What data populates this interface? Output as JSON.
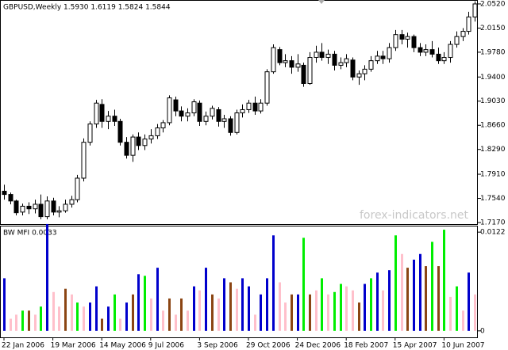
{
  "chart_data": [
    {
      "type": "candlestick",
      "header": "GBPUSD,Weekly  1.5930 1.6119 1.5824 1.5844",
      "watermark": "forex-indicators.net",
      "categories": [
        "22 Jan 2006",
        null,
        null,
        null,
        null,
        null,
        null,
        null,
        "19 Mar 2006",
        null,
        null,
        null,
        null,
        null,
        null,
        null,
        "14 May 2006",
        null,
        null,
        null,
        null,
        null,
        null,
        null,
        "9 Jul 2006",
        null,
        null,
        null,
        null,
        null,
        null,
        null,
        "3 Sep 2006",
        null,
        null,
        null,
        null,
        null,
        null,
        null,
        "29 Oct 2006",
        null,
        null,
        null,
        null,
        null,
        null,
        null,
        "24 Dec 2006",
        null,
        null,
        null,
        null,
        null,
        null,
        null,
        "18 Feb 2007",
        null,
        null,
        null,
        null,
        null,
        null,
        null,
        "15 Apr 2007",
        null,
        null,
        null,
        null,
        null,
        null,
        null,
        "10 Jun 2007",
        null,
        null,
        null,
        null,
        null
      ],
      "open": [
        1.765,
        1.76,
        1.75,
        1.733,
        1.742,
        1.738,
        1.745,
        1.726,
        1.75,
        1.733,
        1.735,
        1.745,
        1.752,
        1.785,
        1.84,
        1.868,
        1.898,
        1.872,
        1.88,
        1.872,
        1.84,
        1.82,
        1.848,
        1.835,
        1.845,
        1.85,
        1.862,
        1.87,
        1.905,
        1.888,
        1.88,
        1.885,
        1.9,
        1.872,
        1.88,
        1.89,
        1.872,
        1.876,
        1.855,
        1.885,
        1.89,
        1.9,
        1.888,
        1.9,
        1.948,
        1.982,
        1.962,
        1.965,
        1.955,
        1.958,
        1.93,
        1.97,
        1.978,
        1.97,
        1.975,
        1.958,
        1.962,
        1.966,
        1.94,
        1.945,
        1.952,
        1.965,
        1.972,
        1.968,
        1.985,
        2.005,
        1.998,
        2.002,
        1.985,
        1.978,
        1.982,
        1.975,
        1.965,
        1.97,
        1.99,
        2.002,
        2.01,
        2.032
      ],
      "high": [
        1.775,
        1.763,
        1.752,
        1.746,
        1.748,
        1.752,
        1.76,
        1.757,
        1.755,
        1.742,
        1.752,
        1.758,
        1.79,
        1.846,
        1.872,
        1.905,
        1.906,
        1.888,
        1.89,
        1.876,
        1.848,
        1.852,
        1.855,
        1.852,
        1.86,
        1.868,
        1.874,
        1.912,
        1.91,
        1.895,
        1.892,
        1.906,
        1.904,
        1.887,
        1.896,
        1.894,
        1.882,
        1.88,
        1.89,
        1.898,
        1.905,
        1.91,
        1.906,
        1.952,
        1.99,
        1.986,
        1.975,
        1.972,
        1.975,
        1.962,
        1.978,
        1.988,
        1.992,
        1.982,
        1.98,
        1.97,
        1.975,
        1.97,
        1.95,
        1.958,
        1.972,
        1.98,
        1.98,
        1.992,
        2.012,
        2.012,
        2.008,
        2.005,
        1.992,
        1.99,
        1.995,
        1.985,
        1.978,
        1.995,
        2.01,
        2.015,
        2.04,
        2.056
      ],
      "low": [
        1.752,
        1.745,
        1.728,
        1.728,
        1.73,
        1.731,
        1.722,
        1.722,
        1.728,
        1.725,
        1.732,
        1.74,
        1.748,
        1.78,
        1.835,
        1.862,
        1.862,
        1.86,
        1.865,
        1.835,
        1.815,
        1.81,
        1.828,
        1.828,
        1.838,
        1.845,
        1.855,
        1.866,
        1.88,
        1.872,
        1.872,
        1.88,
        1.865,
        1.866,
        1.875,
        1.864,
        1.862,
        1.85,
        1.852,
        1.878,
        1.885,
        1.882,
        1.884,
        1.896,
        1.945,
        1.958,
        1.955,
        1.945,
        1.948,
        1.925,
        1.928,
        1.962,
        1.965,
        1.96,
        1.95,
        1.952,
        1.955,
        1.935,
        1.928,
        1.935,
        1.948,
        1.96,
        1.96,
        1.962,
        1.98,
        1.99,
        1.985,
        1.978,
        1.972,
        1.972,
        1.97,
        1.96,
        1.96,
        1.962,
        1.985,
        1.995,
        2.005,
        2.025
      ],
      "close": [
        1.76,
        1.75,
        1.732,
        1.742,
        1.738,
        1.745,
        1.726,
        1.75,
        1.733,
        1.735,
        1.745,
        1.752,
        1.785,
        1.84,
        1.868,
        1.9,
        1.872,
        1.88,
        1.872,
        1.84,
        1.82,
        1.848,
        1.835,
        1.845,
        1.85,
        1.862,
        1.87,
        1.908,
        1.888,
        1.88,
        1.885,
        1.902,
        1.872,
        1.88,
        1.892,
        1.872,
        1.876,
        1.855,
        1.885,
        1.89,
        1.9,
        1.888,
        1.9,
        1.948,
        1.985,
        1.962,
        1.965,
        1.955,
        1.96,
        1.93,
        1.97,
        1.978,
        1.97,
        1.975,
        1.958,
        1.962,
        1.968,
        1.94,
        1.945,
        1.952,
        1.965,
        1.972,
        1.968,
        1.985,
        2.005,
        1.998,
        2.002,
        1.985,
        1.978,
        1.982,
        1.975,
        1.965,
        1.97,
        1.99,
        2.002,
        2.01,
        2.032,
        2.052
      ],
      "up_color": "#ffffff",
      "down_color": "#000000",
      "outline_color": "#000000",
      "ylim": [
        1.7146,
        2.0568
      ],
      "yticks": [
        {
          "value": 2.052,
          "label": "2.0520"
        },
        {
          "value": 2.015,
          "label": "2.0150"
        },
        {
          "value": 1.978,
          "label": "1.9780"
        },
        {
          "value": 1.94,
          "label": "1.9400"
        },
        {
          "value": 1.903,
          "label": "1.9030"
        },
        {
          "value": 1.866,
          "label": "1.8660"
        },
        {
          "value": 1.829,
          "label": "1.8290"
        },
        {
          "value": 1.791,
          "label": "1.7910"
        },
        {
          "value": 1.754,
          "label": "1.7540"
        },
        {
          "value": 1.717,
          "label": "1.7170"
        }
      ],
      "grid": false
    },
    {
      "type": "bar",
      "title": "BW MFI 0.0033",
      "values": [
        0.0065,
        0.0015,
        0.002,
        0.0025,
        0.0025,
        0.002,
        0.003,
        0.0132,
        0.0048,
        0.003,
        0.0052,
        0.0045,
        0.0035,
        0.003,
        0.0035,
        0.0055,
        0.0015,
        0.003,
        0.0045,
        0.0015,
        0.0035,
        0.0045,
        0.007,
        0.0068,
        0.004,
        0.0078,
        0.0025,
        0.004,
        0.002,
        0.004,
        0.0025,
        0.0055,
        0.005,
        0.0078,
        0.0045,
        0.004,
        0.0065,
        0.006,
        0.0052,
        0.0065,
        0.0055,
        0.002,
        0.0045,
        0.0065,
        0.0118,
        0.006,
        0.0035,
        0.0045,
        0.0045,
        0.0115,
        0.0045,
        0.005,
        0.0065,
        0.0045,
        0.0048,
        0.0058,
        0.0055,
        0.005,
        0.0035,
        0.0058,
        0.0065,
        0.0072,
        0.005,
        0.0075,
        0.0118,
        0.0095,
        0.0078,
        0.0088,
        0.0095,
        0.008,
        0.011,
        0.008,
        0.0125,
        0.0042,
        0.0055,
        0.0025,
        0.0072,
        0.0045
      ],
      "colors": [
        "#0000cc",
        "#ffc0cb",
        "#ffc0cb",
        "#00ee00",
        "#8b4513",
        "#ffc0cb",
        "#00ee00",
        "#0000cc",
        "#ffc0cb",
        "#ffc0cb",
        "#8b4513",
        "#ffc0cb",
        "#00ee00",
        "#ffc0cb",
        "#0000cc",
        "#0000cc",
        "#8b4513",
        "#0000cc",
        "#00ee00",
        "#ffc0cb",
        "#0000cc",
        "#8b4513",
        "#0000cc",
        "#00ee00",
        "#ffc0cb",
        "#0000cc",
        "#ffc0cb",
        "#8b4513",
        "#ffc0cb",
        "#8b4513",
        "#ffc0cb",
        "#0000cc",
        "#ffc0cb",
        "#0000cc",
        "#8b4513",
        "#ffc0cb",
        "#0000cc",
        "#8b4513",
        "#ffc0cb",
        "#0000cc",
        "#0000cc",
        "#ffc0cb",
        "#0000cc",
        "#0000cc",
        "#0000cc",
        "#ffc0cb",
        "#ffc0cb",
        "#8b4513",
        "#0000cc",
        "#00ee00",
        "#8b4513",
        "#ffc0cb",
        "#00ee00",
        "#ffc0cb",
        "#00ee00",
        "#00ee00",
        "#ffc0cb",
        "#ffc0cb",
        "#8b4513",
        "#0000cc",
        "#00ee00",
        "#0000cc",
        "#ffc0cb",
        "#0000cc",
        "#00ee00",
        "#ffc0cb",
        "#8b4513",
        "#0000cc",
        "#0000cc",
        "#8b4513",
        "#00ee00",
        "#8b4513",
        "#00ee00",
        "#ffc0cb",
        "#00ee00",
        "#ffc0cb",
        "#0000cc",
        "#ffc0cb"
      ],
      "ylim": [
        -0.0008,
        0.0129
      ],
      "yticks": [
        0.0122,
        0
      ]
    }
  ]
}
